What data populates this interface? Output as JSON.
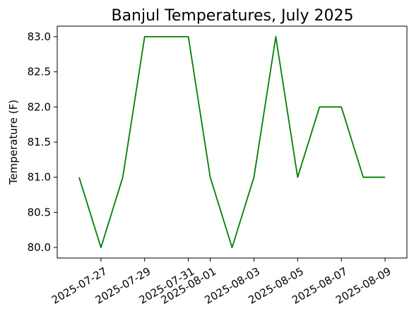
{
  "chart_data": {
    "type": "line",
    "title": "Banjul Temperatures, July 2025",
    "xlabel": "",
    "ylabel": "Temperature (F)",
    "x": [
      "2025-07-26",
      "2025-07-27",
      "2025-07-28",
      "2025-07-29",
      "2025-07-30",
      "2025-07-31",
      "2025-08-01",
      "2025-08-02",
      "2025-08-03",
      "2025-08-04",
      "2025-08-05",
      "2025-08-06",
      "2025-08-07",
      "2025-08-08",
      "2025-08-09"
    ],
    "series": [
      {
        "color": "#008000",
        "values": [
          81,
          80,
          81,
          83,
          83,
          83,
          81,
          80,
          81,
          83,
          81,
          82,
          82,
          81,
          81
        ]
      }
    ],
    "xticks": [
      "2025-07-27",
      "2025-07-29",
      "2025-07-31",
      "2025-08-01",
      "2025-08-03",
      "2025-08-05",
      "2025-08-07",
      "2025-08-09"
    ],
    "yticks": [
      "80.0",
      "80.5",
      "81.0",
      "81.5",
      "82.0",
      "82.5",
      "83.0"
    ],
    "xlim": [
      "2025-07-25",
      "2025-08-10"
    ],
    "ylim": [
      79.85,
      83.15
    ],
    "grid": false
  }
}
